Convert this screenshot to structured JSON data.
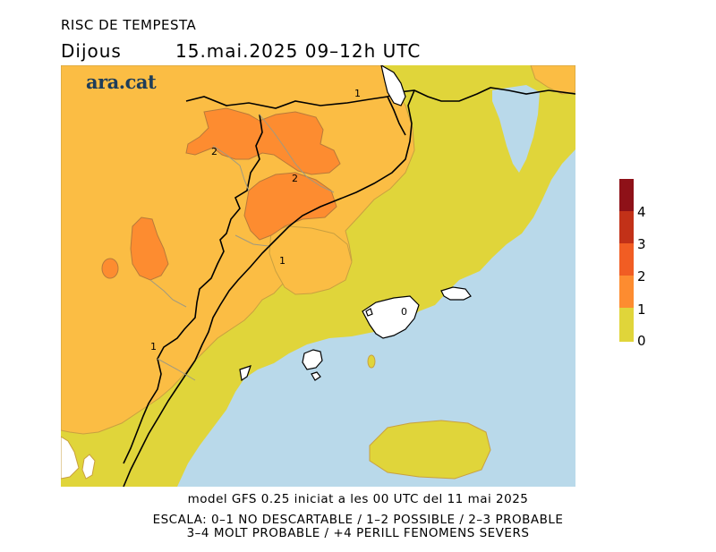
{
  "header": {
    "title": "RISC DE TEMPESTA",
    "day": "Dijous",
    "date_time": "15.mai.2025 09–12h UTC"
  },
  "logo": {
    "text": "ara.cat"
  },
  "map": {
    "contour_labels": [
      "1",
      "2",
      "2",
      "1",
      "1",
      "0"
    ],
    "colors": {
      "sea": "#b9d9ea",
      "level_0": "#e0d53a",
      "level_1": "#fbbd44",
      "level_2": "#fd8c30",
      "level_3": "#f15d23",
      "level_4": "#8e1118"
    }
  },
  "legend": {
    "levels": [
      {
        "label": "0",
        "color": "#e0d53a"
      },
      {
        "label": "1",
        "color": "#fbbd44"
      },
      {
        "label": "2",
        "color": "#fd8c30"
      },
      {
        "label": "3",
        "color": "#f15d23"
      },
      {
        "label": "4",
        "color": "#c23118"
      }
    ],
    "top_color": "#8e1118"
  },
  "footer": {
    "line1": "model GFS 0.25 iniciat a les 00 UTC del 11 mai 2025",
    "line2": "ESCALA: 0–1 NO DESCARTABLE / 1–2 POSSIBLE / 2–3 PROBABLE",
    "line3": "3–4 MOLT PROBABLE / +4 PERILL FENOMENS SEVERS"
  }
}
